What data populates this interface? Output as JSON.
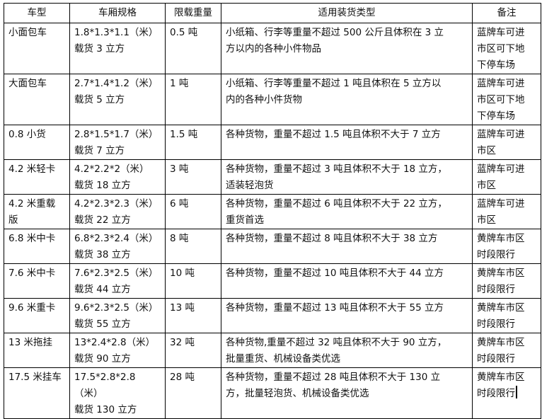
{
  "headers": [
    "车型",
    "车厢规格",
    "限载重量",
    "适用装货类型",
    "备注"
  ],
  "rows": [
    {
      "type": "小面包车",
      "spec": "1.8*1.3*1.1（米）\n载货 3 立方",
      "load": "0.5 吨",
      "cargo": "小纸箱、行李等重量不超过 500 公斤且体积在 3 立\n方以内的各种小件物品",
      "note": "蓝牌车可进\n市区可下地\n下停车场"
    },
    {
      "type": "大面包车",
      "spec": "2.7*1.4*1.2（米）\n载货 5 立方",
      "load": "1 吨",
      "cargo": "小纸箱、行李等重量不超过 1 吨且体积在 5 立方以\n内的各种小件货物",
      "note": "蓝牌车可进\n市区可下地\n下停车场"
    },
    {
      "type": "0.8 小货",
      "spec": "2.8*1.5*1.7（米）\n载货 7 立方",
      "load": "1.5 吨",
      "cargo": "各种货物，重量不超过 1.5 吨且体积不大于 7 立方",
      "note": "蓝牌车可进\n市区"
    },
    {
      "type": "4.2 米轻卡",
      "spec": "4.2*2.2*2（米）\n载货 18 立方",
      "load": "3 吨",
      "cargo": "各种货物，重量不超过 3 吨且体积不大于 18 立方，\n适装轻泡货",
      "note": "蓝牌车可进\n市区"
    },
    {
      "type": "4.2 米重载\n版",
      "spec": "4.2*2.3*2.3（米）\n载货 22 立方",
      "load": "6 吨",
      "cargo": "各种货物，重量不超过 6 吨且体积不大于 22 立方，\n重货首选",
      "note": "蓝牌车可进\n市区"
    },
    {
      "type": "6.8 米中卡",
      "spec": "6.8*2.3*2.4（米）\n载货 38 立方",
      "load": "8 吨",
      "cargo": "各种货物，重量不超过 8 吨且体积不大于 38 立方",
      "note": "黄牌车市区\n时段限行"
    },
    {
      "type": "7.6 米中卡",
      "spec": "7.6*2.3*2.5（米）\n载货 44 立方",
      "load": "10 吨",
      "cargo": "各种货物，重量不超过 10 吨且体积不大于 44 立方",
      "note": "黄牌车市区\n时段限行"
    },
    {
      "type": "9.6 米重卡",
      "spec": "9.6*2.3*2.5（米）\n载货 55 立方",
      "load": "13 吨",
      "cargo": "各种货物，重量不超过 13 吨且体积不大于 55 立方",
      "note": "黄牌车市区\n时段限行"
    },
    {
      "type": "13 米拖挂",
      "spec": "13*2.4*2.8（米）\n载货 90 立方",
      "load": "32 吨",
      "cargo": "各种货物,重量不超过 32 吨且体积不大于 90 立方，\n批量重货、机械设备类优选",
      "note": "黄牌车市区\n时段限行"
    },
    {
      "type": "17.5 米挂车",
      "spec": "17.5*2.8*2.8（米）\n载货 130 立方",
      "load": "28 吨",
      "cargo": "各种货物，重量不超过 28 吨且体积不大于 130 立\n方，批量轻泡货、机械设备类优选",
      "note": "黄牌车市区\n时段限行"
    }
  ]
}
